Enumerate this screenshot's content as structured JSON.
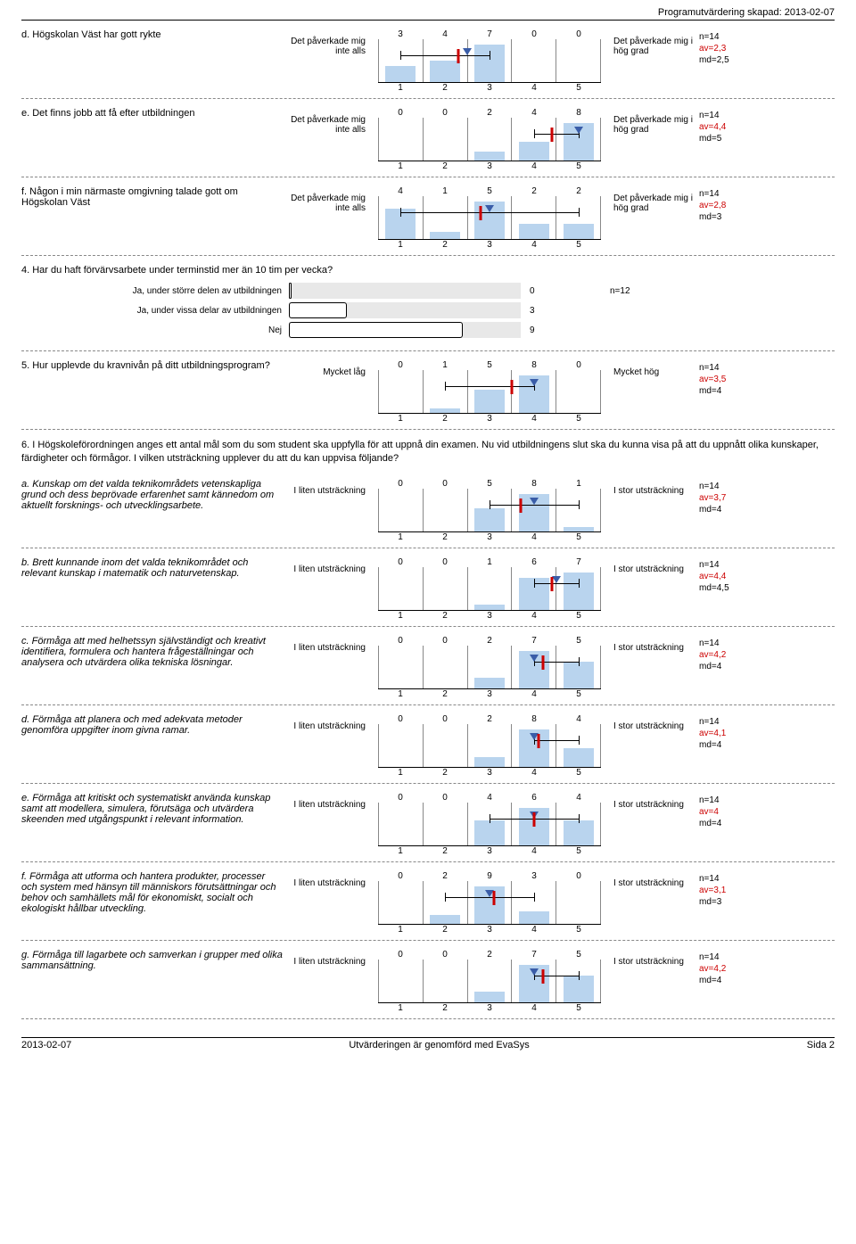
{
  "header": "Programutvärdering skapad: 2013-02-07",
  "anchors_left": {
    "effect": "Det påverkade mig inte alls",
    "utstrackning": "I liten utsträckning",
    "level": "Mycket låg"
  },
  "anchors_right": {
    "effect": "Det påverkade mig i hög grad",
    "utstrackning": "I stor utsträckning",
    "level": "Mycket hög"
  },
  "axis_labels": [
    "1",
    "2",
    "3",
    "4",
    "5"
  ],
  "chart_style": {
    "bar_color": "#b9d4ee",
    "marker_color": "#3a5da8",
    "mean_color": "#c00",
    "max_bar_height": 42
  },
  "questions": [
    {
      "id": "d",
      "label": "d. Högskolan Väst har gott rykte",
      "anchor": "effect",
      "counts": [
        3,
        4,
        7,
        0,
        0
      ],
      "n": 14,
      "av": 2.3,
      "md": 2.5,
      "lo": 1,
      "hi": 3
    },
    {
      "id": "e",
      "label": "e. Det finns jobb att få efter utbildningen",
      "anchor": "effect",
      "counts": [
        0,
        0,
        2,
        4,
        8
      ],
      "n": 14,
      "av": 4.4,
      "md": 5,
      "lo": 4,
      "hi": 5
    },
    {
      "id": "f",
      "label": "f. Någon i min närmaste omgivning talade gott om Högskolan Väst",
      "anchor": "effect",
      "counts": [
        4,
        1,
        5,
        2,
        2
      ],
      "n": 14,
      "av": 2.8,
      "md": 3,
      "lo": 1,
      "hi": 5
    }
  ],
  "hbar_question": {
    "label": "4. Har du haft förvärvsarbete under terminstid mer än 10 tim per vecka?",
    "n": 12,
    "max_display": 12,
    "rows": [
      {
        "label": "Ja, under större delen av utbildningen",
        "value": 0
      },
      {
        "label": "Ja, under vissa delar av utbildningen",
        "value": 3
      },
      {
        "label": "Nej",
        "value": 9
      }
    ]
  },
  "q5": {
    "id": "5",
    "label": "5. Hur upplevde du kravnivån på ditt utbildningsprogram?",
    "anchor": "level",
    "counts": [
      0,
      1,
      5,
      8,
      0
    ],
    "n": 14,
    "av": 3.5,
    "md": 4,
    "lo": 2,
    "hi": 4
  },
  "section6_intro": "6. I Högskoleförordningen anges ett antal mål som du som student ska uppfylla för att uppnå din examen. Nu vid utbildningens slut ska du kunna visa på att du uppnått olika kunskaper, färdigheter och förmågor. I vilken utsträckning upplever du att du kan uppvisa följande?",
  "section6": [
    {
      "id": "6a",
      "label": "a. Kunskap om det valda teknikområdets vetenskapliga grund och dess beprövade erfarenhet samt kännedom om aktuellt forsknings- och utvecklingsarbete.",
      "anchor": "utstrackning",
      "counts": [
        0,
        0,
        5,
        8,
        1
      ],
      "n": 14,
      "av": 3.7,
      "md": 4,
      "lo": 3,
      "hi": 5
    },
    {
      "id": "6b",
      "label": "b. Brett kunnande inom det valda teknikområdet och relevant kunskap i matematik och naturvetenskap.",
      "anchor": "utstrackning",
      "counts": [
        0,
        0,
        1,
        6,
        7
      ],
      "n": 14,
      "av": 4.4,
      "md": 4.5,
      "lo": 4,
      "hi": 5
    },
    {
      "id": "6c",
      "label": "c. Förmåga att med helhetssyn självständigt och kreativt identifiera, formulera och hantera frågeställningar och analysera och utvärdera olika tekniska lösningar.",
      "anchor": "utstrackning",
      "counts": [
        0,
        0,
        2,
        7,
        5
      ],
      "n": 14,
      "av": 4.2,
      "md": 4,
      "lo": 4,
      "hi": 5
    },
    {
      "id": "6d",
      "label": "d. Förmåga att planera och med adekvata metoder genomföra uppgifter inom givna ramar.",
      "anchor": "utstrackning",
      "counts": [
        0,
        0,
        2,
        8,
        4
      ],
      "n": 14,
      "av": 4.1,
      "md": 4,
      "lo": 4,
      "hi": 5
    },
    {
      "id": "6e",
      "label": "e. Förmåga att kritiskt och systematiskt använda kunskap samt att modellera, simulera, förutsäga och utvärdera skeenden med utgångspunkt i relevant information.",
      "anchor": "utstrackning",
      "counts": [
        0,
        0,
        4,
        6,
        4
      ],
      "n": 14,
      "av": 4,
      "md": 4,
      "lo": 3,
      "hi": 5
    },
    {
      "id": "6f",
      "label": "f. Förmåga att utforma och hantera produkter, processer och system med hänsyn till människors förutsättningar och behov och samhällets mål för ekonomiskt, socialt och ekologiskt hållbar utveckling.",
      "anchor": "utstrackning",
      "counts": [
        0,
        2,
        9,
        3,
        0
      ],
      "n": 14,
      "av": 3.1,
      "md": 3,
      "lo": 2,
      "hi": 4
    },
    {
      "id": "6g",
      "label": "g. Förmåga till lagarbete och samverkan i grupper med olika sammansättning.",
      "anchor": "utstrackning",
      "counts": [
        0,
        0,
        2,
        7,
        5
      ],
      "n": 14,
      "av": 4.2,
      "md": 4,
      "lo": 4,
      "hi": 5
    }
  ],
  "footer": {
    "left": "2013-02-07",
    "center": "Utvärderingen är genomförd med EvaSys",
    "right": "Sida 2"
  }
}
